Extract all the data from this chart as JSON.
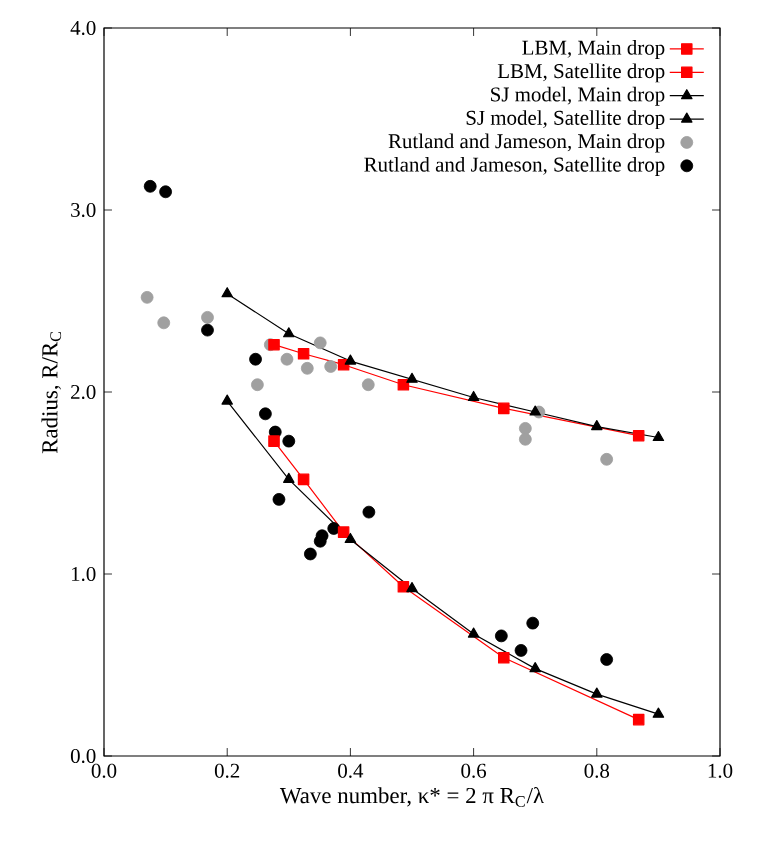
{
  "chart_data": {
    "type": "line",
    "xlabel": "Wave number, κ* = 2 π R$_{C}$/λ",
    "ylabel": "Radius, R/R$_{C}$",
    "xlim": [
      0,
      1
    ],
    "ylim": [
      0,
      4
    ],
    "xticks": [
      {
        "value": 0,
        "label": "0.0"
      },
      {
        "value": 0.2,
        "label": "0.2"
      },
      {
        "value": 0.4,
        "label": "0.4"
      },
      {
        "value": 0.6,
        "label": "0.6"
      },
      {
        "value": 0.8,
        "label": "0.8"
      },
      {
        "value": 1,
        "label": "1.0"
      }
    ],
    "yticks": [
      {
        "value": 0,
        "label": "0.0"
      },
      {
        "value": 1,
        "label": "1.0"
      },
      {
        "value": 2,
        "label": "2.0"
      },
      {
        "value": 3,
        "label": "3.0"
      },
      {
        "value": 4,
        "label": "4.0"
      }
    ],
    "grid": false,
    "legend": "top right",
    "line_style": "solid",
    "series": [
      {
        "name": "LBM, Main drop",
        "color": "#ff0000",
        "marker": "square",
        "x": [
          0.276,
          0.324,
          0.389,
          0.486,
          0.649,
          0.868
        ],
        "values": [
          2.26,
          2.21,
          2.15,
          2.04,
          1.91,
          1.76
        ]
      },
      {
        "name": "LBM, Satellite drop",
        "color": "#ff0000",
        "marker": "square",
        "x": [
          0.276,
          0.324,
          0.389,
          0.486,
          0.649,
          0.868
        ],
        "values": [
          1.73,
          1.52,
          1.23,
          0.93,
          0.54,
          0.2
        ]
      },
      {
        "name": "SJ model, Main drop",
        "color": "#000000",
        "marker": "triangle",
        "x": [
          0.2,
          0.3,
          0.4,
          0.5,
          0.6,
          0.7,
          0.8,
          0.9
        ],
        "values": [
          2.54,
          2.32,
          2.17,
          2.07,
          1.97,
          1.89,
          1.81,
          1.75
        ]
      },
      {
        "name": "SJ model, Satellite drop",
        "color": "#000000",
        "marker": "triangle",
        "x": [
          0.2,
          0.3,
          0.4,
          0.5,
          0.6,
          0.7,
          0.8,
          0.9
        ],
        "values": [
          1.95,
          1.52,
          1.19,
          0.92,
          0.67,
          0.48,
          0.34,
          0.23
        ]
      },
      {
        "name": "Rutland and Jameson, Main drop",
        "type": "scatter",
        "color": "#a0a0a0",
        "marker": "circle",
        "x": [
          0.07,
          0.097,
          0.168,
          0.249,
          0.27,
          0.297,
          0.33,
          0.351,
          0.368,
          0.429,
          0.706,
          0.684,
          0.684,
          0.816
        ],
        "values": [
          2.52,
          2.38,
          2.41,
          2.04,
          2.26,
          2.18,
          2.13,
          2.27,
          2.14,
          2.04,
          1.89,
          1.8,
          1.74,
          1.63
        ]
      },
      {
        "name": "Rutland and Jameson, Satellite drop",
        "type": "scatter",
        "color": "#000000",
        "marker": "circle",
        "x": [
          0.075,
          0.1,
          0.168,
          0.246,
          0.262,
          0.278,
          0.3,
          0.284,
          0.335,
          0.351,
          0.354,
          0.373,
          0.43,
          0.645,
          0.677,
          0.696,
          0.816
        ],
        "values": [
          3.13,
          3.1,
          2.34,
          2.18,
          1.88,
          1.78,
          1.73,
          1.41,
          1.11,
          1.18,
          1.21,
          1.25,
          1.34,
          0.66,
          0.58,
          0.73,
          0.53
        ]
      }
    ]
  }
}
